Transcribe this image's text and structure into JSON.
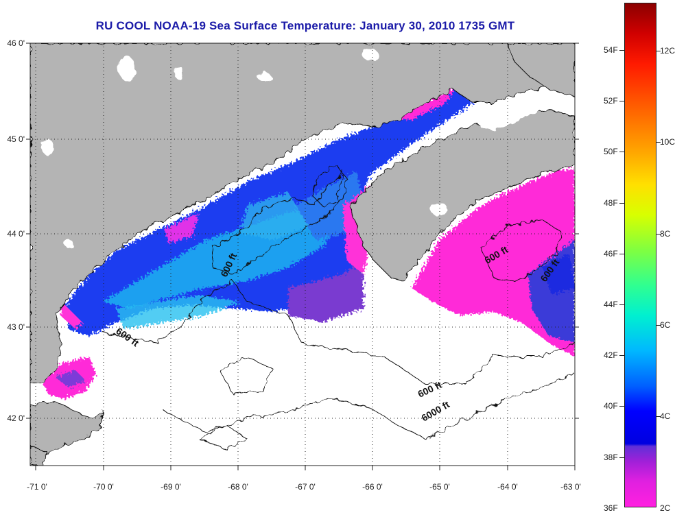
{
  "title": "RU COOL  NOAA-19  Sea Surface Temperature:  January 30, 2010 1735 GMT",
  "map": {
    "lat_ticks": [
      "46 0'",
      "45 0'",
      "44 0'",
      "43 0'",
      "42 0'"
    ],
    "lon_ticks": [
      "-71 0'",
      "-70 0'",
      "-69 0'",
      "-68 0'",
      "-67 0'",
      "-66 0'",
      "-65 0'",
      "-64 0'",
      "-63 0'"
    ],
    "contour_labels": [
      "600 ft",
      "600 ft",
      "600 ft",
      "600 ft",
      "600 ft",
      "6000 ft"
    ],
    "colors": {
      "land": "#b4b4b4",
      "cloud": "#ffffff",
      "grid": "#222222"
    }
  },
  "colorbar": {
    "fahrenheit": [
      "54F",
      "52F",
      "50F",
      "48F",
      "46F",
      "44F",
      "42F",
      "40F",
      "38F",
      "36F"
    ],
    "celsius": [
      "12C",
      "10C",
      "8C",
      "6C",
      "4C",
      "2C"
    ]
  }
}
